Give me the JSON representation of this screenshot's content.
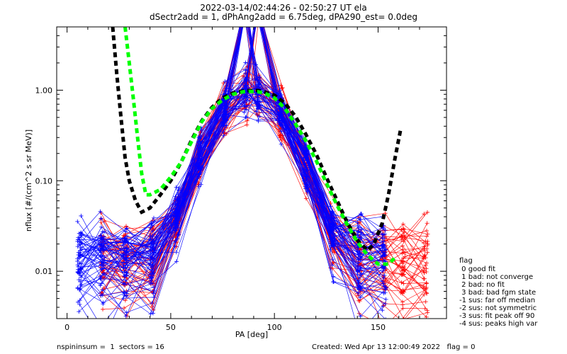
{
  "header": {
    "line1": "2022-03-14/02:44:26 - 02:50:27 UT ela",
    "line2": "dSectr2add = 1, dPhAng2add = 6.75deg, dPA290_est=   0.0deg"
  },
  "footer": {
    "left": "nspininsum =  1  sectors = 16",
    "right": "Created: Wed Apr 13 12:00:49 2022   flag = 0"
  },
  "legend": {
    "title": "flag",
    "items": [
      " 0 good fit",
      " 1 bad: not converge",
      " 2 bad: no fit",
      " 3 bad: bad fgm state",
      "-1 sus: far off median",
      "-2 sus: not symmetric",
      "-3 sus: fit peak off 90",
      "-4 sus: peaks high var"
    ]
  },
  "colors": {
    "series_red": "#ff0000",
    "series_blue": "#0000ff",
    "model_black": "#000000",
    "fit_green": "#00ff00",
    "axes": "#000000",
    "background": "#ffffff"
  },
  "chart_data": {
    "type": "line",
    "title": "2022-03-14/02:44:26 - 02:50:27 UT ela",
    "subtitle": "dSectr2add = 1, dPhAng2add = 6.75deg, dPA290_est=   0.0deg",
    "xlabel": "PA [deg]",
    "ylabel": "nflux [#/(cm^2 s sr MeV)]",
    "xlim": [
      -5,
      183
    ],
    "ylim": [
      0.003,
      5
    ],
    "yscale": "log",
    "x_ticks": [
      0,
      50,
      100,
      150
    ],
    "x_tick_labels": [
      "0",
      "50",
      "100",
      "150"
    ],
    "y_ticks": [
      0.01,
      0.1,
      1.0
    ],
    "y_tick_labels": [
      "0.01",
      "0.10",
      "1.00"
    ],
    "series": [
      {
        "style": "dashed-thick",
        "color": "black",
        "points": [
          [
            22,
            5.0
          ],
          [
            24,
            1.5
          ],
          [
            26,
            0.5
          ],
          [
            28,
            0.18
          ],
          [
            30,
            0.1
          ],
          [
            33,
            0.06
          ],
          [
            36,
            0.045
          ],
          [
            40,
            0.05
          ],
          [
            45,
            0.07
          ],
          [
            50,
            0.1
          ],
          [
            55,
            0.16
          ],
          [
            60,
            0.28
          ],
          [
            65,
            0.46
          ],
          [
            70,
            0.65
          ],
          [
            75,
            0.82
          ],
          [
            80,
            0.93
          ],
          [
            85,
            0.98
          ],
          [
            88,
            0.99
          ],
          [
            92,
            0.99
          ],
          [
            95,
            0.96
          ],
          [
            100,
            0.88
          ],
          [
            105,
            0.72
          ],
          [
            110,
            0.52
          ],
          [
            115,
            0.33
          ],
          [
            120,
            0.2
          ],
          [
            125,
            0.11
          ],
          [
            130,
            0.062
          ],
          [
            135,
            0.035
          ],
          [
            140,
            0.022
          ],
          [
            145,
            0.017
          ],
          [
            148,
            0.02
          ],
          [
            152,
            0.034
          ],
          [
            155,
            0.07
          ],
          [
            158,
            0.17
          ],
          [
            161,
            0.38
          ]
        ]
      },
      {
        "style": "dashed-thick",
        "color": "green",
        "points": [
          [
            28,
            5.0
          ],
          [
            30,
            2.0
          ],
          [
            32,
            0.8
          ],
          [
            34,
            0.3
          ],
          [
            36,
            0.12
          ],
          [
            38,
            0.07
          ],
          [
            40,
            0.07
          ],
          [
            45,
            0.08
          ],
          [
            50,
            0.11
          ],
          [
            55,
            0.16
          ],
          [
            60,
            0.27
          ],
          [
            65,
            0.45
          ],
          [
            70,
            0.63
          ],
          [
            75,
            0.78
          ],
          [
            80,
            0.9
          ],
          [
            85,
            0.96
          ],
          [
            88,
            0.97
          ],
          [
            92,
            0.96
          ],
          [
            95,
            0.93
          ],
          [
            100,
            0.82
          ],
          [
            105,
            0.63
          ],
          [
            110,
            0.43
          ],
          [
            115,
            0.28
          ],
          [
            120,
            0.17
          ],
          [
            125,
            0.095
          ],
          [
            130,
            0.055
          ],
          [
            135,
            0.033
          ],
          [
            140,
            0.021
          ],
          [
            145,
            0.015
          ],
          [
            150,
            0.012
          ],
          [
            155,
            0.012
          ],
          [
            158,
            0.014
          ]
        ]
      }
    ],
    "legend_title": "flag",
    "legend_position": "right"
  }
}
